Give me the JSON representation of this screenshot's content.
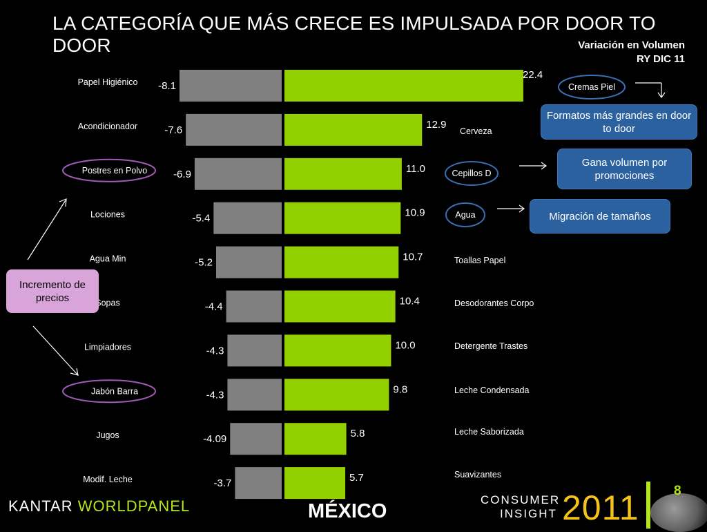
{
  "title": "LA CATEGORÍA QUE MÁS CRECE ES IMPULSADA POR DOOR TO DOOR",
  "subtitle_line1": "Variación en Volumen",
  "subtitle_line2": "RY DIC 11",
  "colors": {
    "negative_bar": "#808080",
    "positive_bar": "#92d000",
    "blue_box": "#2c61a0",
    "pink_box": "#d9a4d9",
    "accent": "#b5e61d",
    "year": "#f3c21b"
  },
  "chart_data": {
    "type": "bar",
    "orientation": "horizontal-diverging",
    "negative_series": {
      "categories": [
        "Papel Higiénico",
        "Acondicionador",
        "Postres en Polvo",
        "Lociones",
        "Agua Min",
        "Sopas",
        "Limpiadores",
        "Jabón Barra",
        "Jugos",
        "Modif. Leche"
      ],
      "values": [
        -8.1,
        -7.6,
        -6.9,
        -5.4,
        -5.2,
        -4.4,
        -4.3,
        -4.3,
        -4.09,
        -3.7
      ],
      "labels": [
        "-8.1",
        "-7.6",
        "-6.9",
        "-5.4",
        "-5.2",
        "-4.4",
        "-4.3",
        "-4.3",
        "-4.09",
        "-3.7"
      ]
    },
    "positive_series": {
      "categories": [
        "Cremas Piel",
        "Cerveza",
        "Cepillos D",
        "Agua",
        "Toallas Papel",
        "Desodorantes Corpo",
        "Detergente  Trastes",
        "Leche Condensada",
        "Leche Saborizada",
        "Suavizantes"
      ],
      "values": [
        22.4,
        12.9,
        11.0,
        10.9,
        10.7,
        10.4,
        10.0,
        9.8,
        5.8,
        5.7
      ],
      "labels": [
        "22.4",
        "12.9",
        "11.0",
        "10.9",
        "10.7",
        "10.4",
        "10.0",
        "9.8",
        "5.8",
        "5.7"
      ]
    },
    "circled_negative": [
      "Postres en Polvo",
      "Jabón Barra"
    ],
    "circled_positive": [
      "Cremas Piel",
      "Cepillos D",
      "Agua"
    ]
  },
  "callouts": {
    "formatos": "Formatos más grandes en door  to door",
    "gana": "Gana volumen por promociones",
    "migracion": "Migración de tamaños",
    "incremento": "Incremento de precios"
  },
  "footer": {
    "brand_part1": "KANTAR ",
    "brand_part2": "WORLDPANEL",
    "country": "MÉXICO",
    "consumer": "CONSUMER",
    "insight": "INSIGHT",
    "year": "2011",
    "page": "8"
  }
}
